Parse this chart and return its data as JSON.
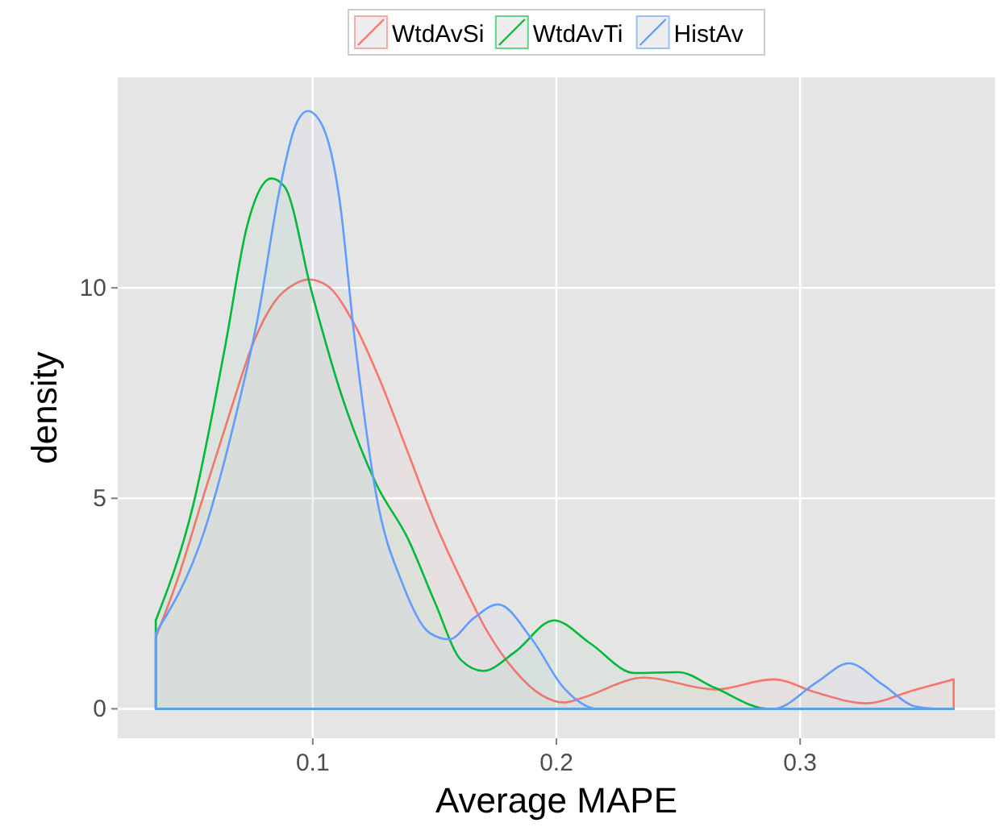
{
  "chart_data": {
    "type": "area",
    "xlabel": "Average MAPE",
    "ylabel": "density",
    "xlim": [
      0.02,
      0.38
    ],
    "ylim": [
      -0.7,
      15
    ],
    "xticks": [
      0.1,
      0.2,
      0.3
    ],
    "yticks": [
      0,
      5,
      10
    ],
    "grid": true,
    "legend": "top",
    "series": [
      {
        "name": "WtdAvSi",
        "color": "#f8766d",
        "x": [
          0.0356,
          0.0444,
          0.0554,
          0.0664,
          0.0753,
          0.0841,
          0.0929,
          0.0985,
          0.106,
          0.117,
          0.128,
          0.139,
          0.15,
          0.161,
          0.172,
          0.183,
          0.194,
          0.203,
          0.21,
          0.236,
          0.265,
          0.289,
          0.307,
          0.327,
          0.347,
          0.363
        ],
        "values": [
          1.7,
          3.05,
          5.1,
          7.1,
          8.65,
          9.65,
          10.1,
          10.2,
          10.05,
          9.15,
          7.75,
          6.1,
          4.45,
          3.05,
          1.8,
          0.9,
          0.32,
          0.15,
          0.25,
          0.74,
          0.46,
          0.7,
          0.38,
          0.13,
          0.45,
          0.7
        ]
      },
      {
        "name": "WtdAvTi",
        "color": "#00ba38",
        "x": [
          0.0356,
          0.051,
          0.0642,
          0.073,
          0.083,
          0.0885,
          0.0996,
          0.111,
          0.126,
          0.139,
          0.15,
          0.161,
          0.17,
          0.183,
          0.199,
          0.214,
          0.232,
          0.25,
          0.265,
          0.287,
          0.363
        ],
        "values": [
          2.1,
          4.85,
          8.65,
          11.45,
          12.6,
          12.4,
          9.9,
          7.6,
          5.35,
          4.05,
          2.55,
          1.15,
          0.9,
          1.35,
          2.1,
          1.55,
          0.85,
          0.87,
          0.5,
          0,
          0
        ]
      },
      {
        "name": "HistAv",
        "color": "#619cff",
        "x": [
          0.0356,
          0.0554,
          0.0686,
          0.0775,
          0.0863,
          0.0929,
          0.098,
          0.104,
          0.111,
          0.117,
          0.126,
          0.137,
          0.148,
          0.156,
          0.166,
          0.176,
          0.19,
          0.203,
          0.217,
          0.289,
          0.307,
          0.32,
          0.334,
          0.347,
          0.356,
          0.363
        ],
        "values": [
          1.8,
          4.2,
          7,
          9.3,
          12.3,
          13.85,
          14.2,
          13.85,
          12.1,
          8.9,
          5.1,
          2.95,
          1.8,
          1.65,
          2.15,
          2.48,
          1.65,
          0.5,
          0,
          0,
          0.64,
          1.08,
          0.57,
          0.06,
          0,
          0
        ]
      }
    ]
  }
}
